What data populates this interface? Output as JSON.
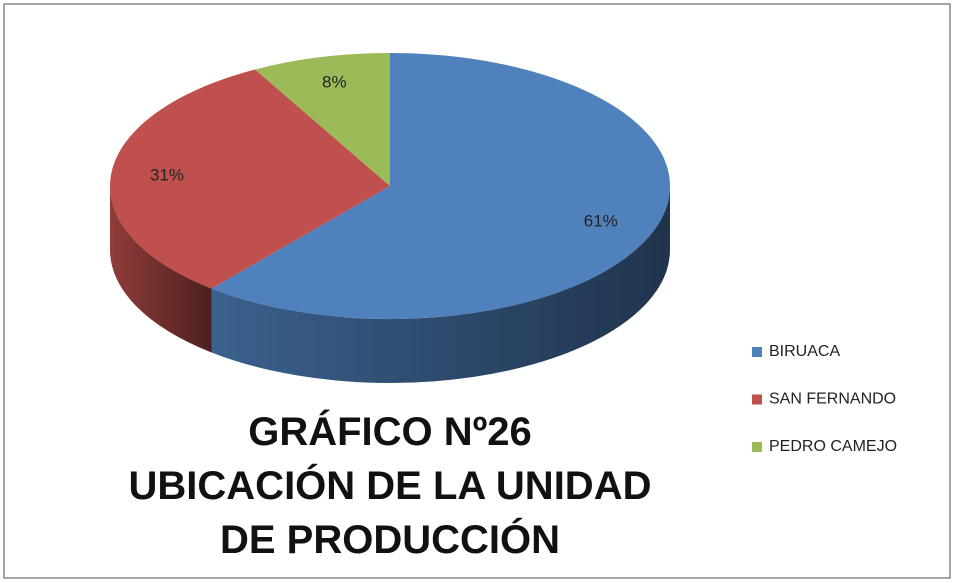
{
  "chart_data": {
    "type": "pie",
    "title": "GRÁFICO Nº26",
    "subtitle": "UBICACIÓN DE LA UNIDAD DE PRODUCCIÓN",
    "categories": [
      "BIRUACA",
      "SAN FERNANDO",
      "PEDRO CAMEJO"
    ],
    "values": [
      61,
      31,
      8
    ],
    "value_labels": [
      "61%",
      "31%",
      "8%"
    ],
    "colors": [
      "#4f81bd",
      "#c0504d",
      "#9bbb59"
    ],
    "legend": "right"
  }
}
